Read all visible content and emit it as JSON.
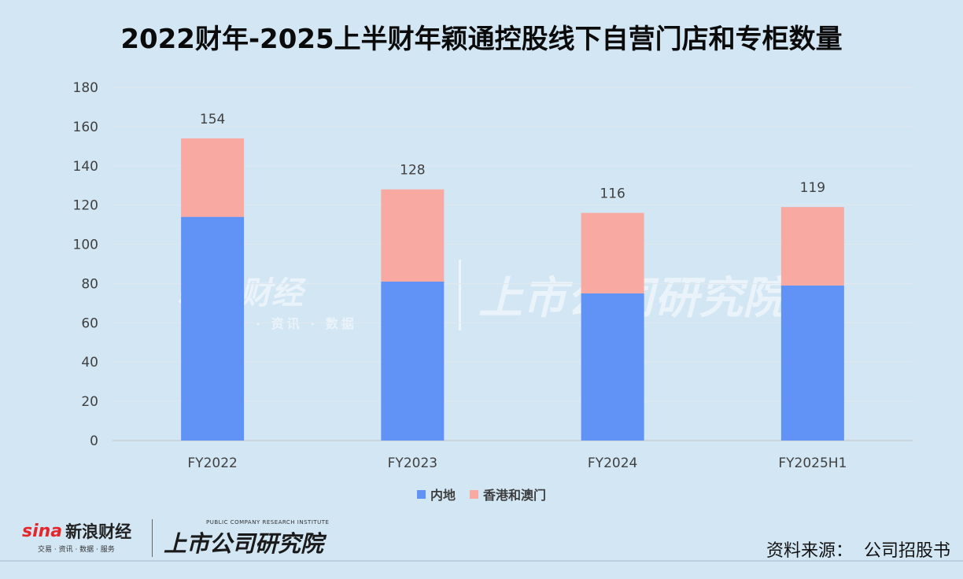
{
  "title": "2022财年-2025上半财年颖通控股线下自营门店和专柜数量",
  "chart_data": {
    "type": "bar",
    "stacked": true,
    "categories": [
      "FY2022",
      "FY2023",
      "FY2024",
      "FY2025H1"
    ],
    "series": [
      {
        "name": "内地",
        "values": [
          114,
          81,
          75,
          79
        ],
        "color": "#6193f7"
      },
      {
        "name": "香港和澳门",
        "values": [
          40,
          47,
          41,
          40
        ],
        "color": "#f8a9a2"
      }
    ],
    "totals": [
      154,
      128,
      116,
      119
    ],
    "ylim": [
      0,
      180
    ],
    "yticks": [
      0,
      20,
      40,
      60,
      80,
      100,
      120,
      140,
      160,
      180
    ],
    "grid": true,
    "legend_position": "bottom"
  },
  "watermark": {
    "left_text": "新浪财经",
    "left_sub": "· 资讯 · 数据",
    "right_text": "上市公司研究院"
  },
  "footer": {
    "sina_mark": "sina",
    "sina_name": "新浪财经",
    "sina_sub": "交易 · 资讯 · 数据 · 服务",
    "institute_en": "PUBLIC COMPANY RESEARCH INSTITUTE",
    "institute_name": "上市公司研究院",
    "source": "资料来源：  公司招股书"
  }
}
